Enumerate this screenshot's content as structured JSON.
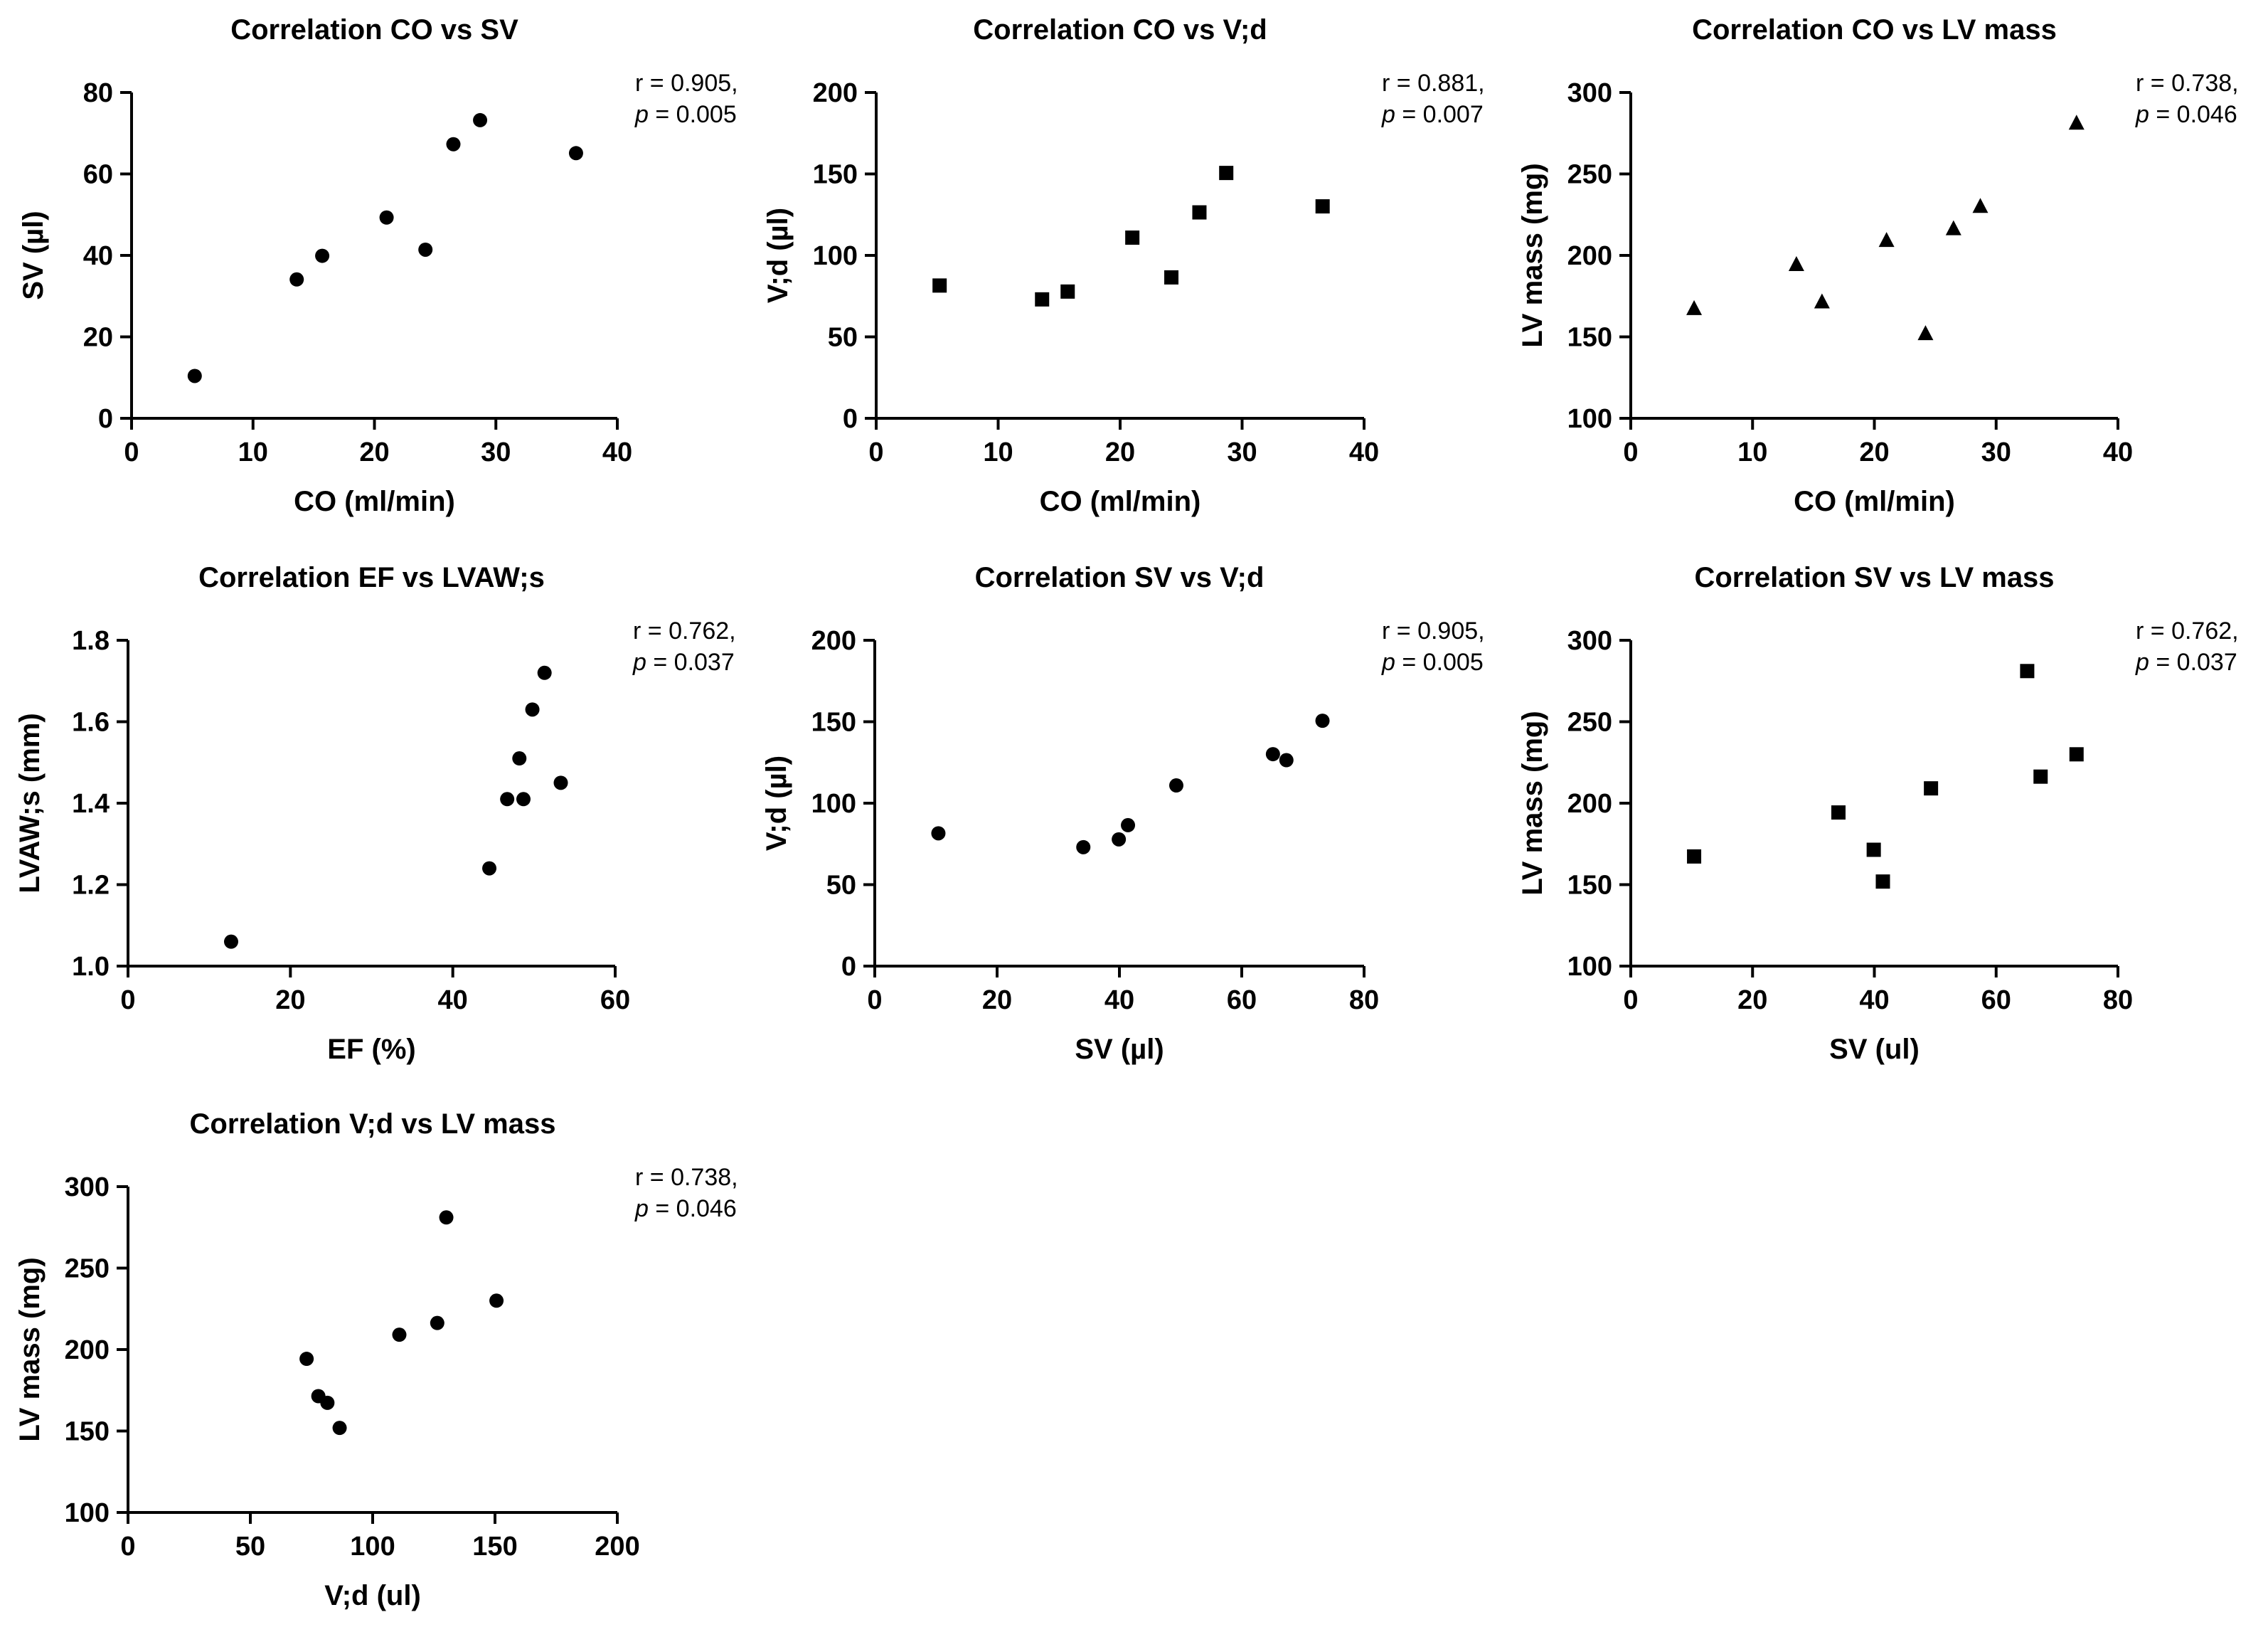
{
  "chart_data": [
    {
      "type": "scatter",
      "title": "Correlation CO vs SV",
      "xlabel": "CO (ml/min)",
      "ylabel": "SV (µl)",
      "xlim": [
        0,
        40
      ],
      "ylim": [
        0,
        80
      ],
      "xticks": [
        0,
        10,
        20,
        30,
        40
      ],
      "yticks": [
        0,
        20,
        40,
        60,
        80
      ],
      "marker": "circle",
      "grid": false,
      "points": [
        {
          "x": 5.2,
          "y": 10.4
        },
        {
          "x": 13.6,
          "y": 34.1
        },
        {
          "x": 15.7,
          "y": 39.9
        },
        {
          "x": 21.0,
          "y": 49.3
        },
        {
          "x": 24.2,
          "y": 41.4
        },
        {
          "x": 26.5,
          "y": 67.3
        },
        {
          "x": 28.7,
          "y": 73.2
        },
        {
          "x": 36.6,
          "y": 65.1
        }
      ],
      "annotation": {
        "r_text": "r = 0.905,",
        "p_label": "p",
        "p_text": " = 0.005"
      }
    },
    {
      "type": "scatter",
      "title": "Correlation CO vs V;d",
      "xlabel": "CO (ml/min)",
      "ylabel": "V;d (µl)",
      "xlim": [
        0,
        40
      ],
      "ylim": [
        0,
        200
      ],
      "xticks": [
        0,
        10,
        20,
        30,
        40
      ],
      "yticks": [
        0,
        50,
        100,
        150,
        200
      ],
      "marker": "square",
      "grid": false,
      "points": [
        {
          "x": 5.2,
          "y": 81.5
        },
        {
          "x": 13.6,
          "y": 73.0
        },
        {
          "x": 15.7,
          "y": 77.8
        },
        {
          "x": 21.0,
          "y": 110.9
        },
        {
          "x": 24.2,
          "y": 86.5
        },
        {
          "x": 26.5,
          "y": 126.4
        },
        {
          "x": 28.7,
          "y": 150.6
        },
        {
          "x": 36.6,
          "y": 130.1
        }
      ],
      "annotation": {
        "r_text": "r = 0.881,",
        "p_label": "p",
        "p_text": " = 0.007"
      }
    },
    {
      "type": "scatter",
      "title": "Correlation CO vs LV mass",
      "xlabel": "CO (ml/min)",
      "ylabel": "LV mass (mg)",
      "xlim": [
        0,
        40
      ],
      "ylim": [
        100,
        300
      ],
      "xticks": [
        0,
        10,
        20,
        30,
        40
      ],
      "yticks": [
        100,
        150,
        200,
        250,
        300
      ],
      "marker": "triangle",
      "grid": false,
      "points": [
        {
          "x": 5.2,
          "y": 167.3
        },
        {
          "x": 13.6,
          "y": 194.3
        },
        {
          "x": 15.7,
          "y": 171.4
        },
        {
          "x": 21.0,
          "y": 209.1
        },
        {
          "x": 24.2,
          "y": 151.9
        },
        {
          "x": 26.5,
          "y": 216.3
        },
        {
          "x": 28.7,
          "y": 230.0
        },
        {
          "x": 36.6,
          "y": 281.1
        }
      ],
      "annotation": {
        "r_text": "r = 0.738,",
        "p_label": "p",
        "p_text": " = 0.046"
      }
    },
    {
      "type": "scatter",
      "title": "Correlation EF vs LVAW;s",
      "xlabel": "EF (%)",
      "ylabel": "LVAW;s (mm)",
      "xlim": [
        0,
        60
      ],
      "ylim": [
        1.0,
        1.8
      ],
      "xticks": [
        0,
        20,
        40,
        60
      ],
      "yticks": [
        "1.0",
        "1.2",
        "1.4",
        "1.6",
        "1.8"
      ],
      "marker": "circle",
      "grid": false,
      "points": [
        {
          "x": 12.7,
          "y": 1.06
        },
        {
          "x": 44.5,
          "y": 1.24
        },
        {
          "x": 46.7,
          "y": 1.41
        },
        {
          "x": 48.2,
          "y": 1.51
        },
        {
          "x": 48.7,
          "y": 1.41
        },
        {
          "x": 49.8,
          "y": 1.63
        },
        {
          "x": 51.3,
          "y": 1.72
        },
        {
          "x": 53.3,
          "y": 1.45
        }
      ],
      "annotation": {
        "r_text": "r = 0.762,",
        "p_label": "p",
        "p_text": " = 0.037"
      }
    },
    {
      "type": "scatter",
      "title": "Correlation SV vs V;d",
      "xlabel": "SV (µl)",
      "ylabel": "V;d (µl)",
      "xlim": [
        0,
        80
      ],
      "ylim": [
        0,
        200
      ],
      "xticks": [
        0,
        20,
        40,
        60,
        80
      ],
      "yticks": [
        0,
        50,
        100,
        150,
        200
      ],
      "marker": "circle",
      "grid": false,
      "points": [
        {
          "x": 10.4,
          "y": 81.5
        },
        {
          "x": 34.1,
          "y": 73.0
        },
        {
          "x": 39.9,
          "y": 77.8
        },
        {
          "x": 41.4,
          "y": 86.5
        },
        {
          "x": 49.3,
          "y": 110.9
        },
        {
          "x": 65.1,
          "y": 130.1
        },
        {
          "x": 67.3,
          "y": 126.4
        },
        {
          "x": 73.2,
          "y": 150.6
        }
      ],
      "annotation": {
        "r_text": "r = 0.905,",
        "p_label": "p",
        "p_text": " = 0.005"
      }
    },
    {
      "type": "scatter",
      "title": "Correlation SV vs LV mass",
      "xlabel": "SV (ul)",
      "ylabel": "LV mass (mg)",
      "xlim": [
        0,
        80
      ],
      "ylim": [
        100,
        300
      ],
      "xticks": [
        0,
        20,
        40,
        60,
        80
      ],
      "yticks": [
        100,
        150,
        200,
        250,
        300
      ],
      "marker": "square",
      "grid": false,
      "points": [
        {
          "x": 10.4,
          "y": 167.3
        },
        {
          "x": 34.1,
          "y": 194.3
        },
        {
          "x": 39.9,
          "y": 171.4
        },
        {
          "x": 41.4,
          "y": 151.9
        },
        {
          "x": 49.3,
          "y": 209.1
        },
        {
          "x": 65.1,
          "y": 281.1
        },
        {
          "x": 67.3,
          "y": 216.3
        },
        {
          "x": 73.2,
          "y": 230.0
        }
      ],
      "annotation": {
        "r_text": "r = 0.762,",
        "p_label": "p",
        "p_text": " = 0.037"
      }
    },
    {
      "type": "scatter",
      "title": "Correlation V;d vs LV mass",
      "xlabel": "V;d (ul)",
      "ylabel": "LV mass (mg)",
      "xlim": [
        0,
        200
      ],
      "ylim": [
        100,
        300
      ],
      "xticks": [
        0,
        50,
        100,
        150,
        200
      ],
      "yticks": [
        100,
        150,
        200,
        250,
        300
      ],
      "marker": "circle",
      "grid": false,
      "points": [
        {
          "x": 73.0,
          "y": 194.3
        },
        {
          "x": 77.8,
          "y": 171.4
        },
        {
          "x": 81.5,
          "y": 167.3
        },
        {
          "x": 86.5,
          "y": 151.9
        },
        {
          "x": 110.9,
          "y": 209.1
        },
        {
          "x": 126.4,
          "y": 216.3
        },
        {
          "x": 130.1,
          "y": 281.1
        },
        {
          "x": 150.6,
          "y": 230.0
        }
      ],
      "annotation": {
        "r_text": "r = 0.738,",
        "p_label": "p",
        "p_text": " = 0.046"
      }
    }
  ]
}
